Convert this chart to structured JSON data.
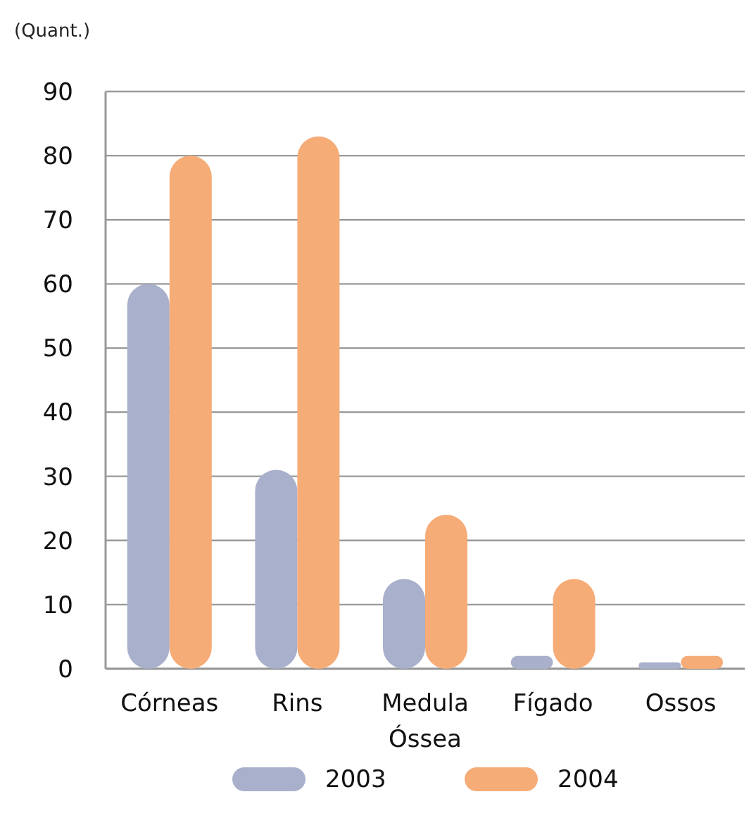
{
  "chart_data": {
    "type": "bar",
    "ylabel": "(Quant.)",
    "categories": [
      "Córneas",
      "Rins",
      "Medula\nÓssea",
      "Fígado",
      "Ossos"
    ],
    "series": [
      {
        "name": "2003",
        "color": "#a9b0cc",
        "values": [
          60,
          31,
          14,
          2,
          1
        ]
      },
      {
        "name": "2004",
        "color": "#f6ac77",
        "values": [
          80,
          83,
          24,
          14,
          2
        ]
      }
    ],
    "ylim": [
      0,
      90
    ],
    "yticks": [
      0,
      10,
      20,
      30,
      40,
      50,
      60,
      70,
      80,
      90
    ],
    "grid": "y",
    "legend": "bottom"
  }
}
